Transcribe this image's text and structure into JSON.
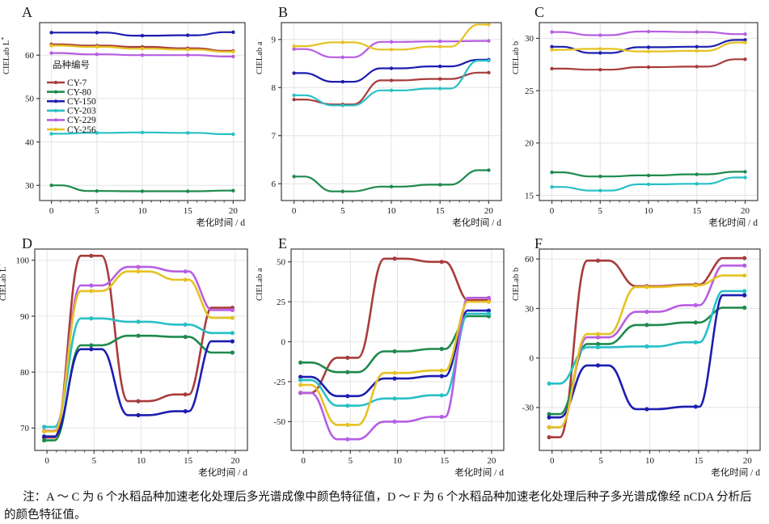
{
  "figure": {
    "legend_title": "品种编号",
    "series": [
      {
        "name": "CY-7",
        "color": "#A83C3C"
      },
      {
        "name": "CY-80",
        "color": "#1E8A4D"
      },
      {
        "name": "CY-150",
        "color": "#1D1DB0"
      },
      {
        "name": "CY-203",
        "color": "#27C0C6"
      },
      {
        "name": "CY-229",
        "color": "#B75EE3"
      },
      {
        "name": "CY-256",
        "color": "#E6C223"
      }
    ],
    "x": [
      0,
      5,
      10,
      15,
      20
    ],
    "xlabel": "老化时间 / d",
    "grid": "on",
    "colors": {
      "gridline": "#E4E4E4",
      "axis": "#3E3E3E",
      "text": "#1a1a1a"
    }
  },
  "chart_data": [
    {
      "type": "line",
      "panel": "A",
      "ylabel": "CIELab L*",
      "xlabel": "老化时间 / d",
      "yticks": [
        30,
        40,
        50,
        60
      ],
      "ylim": [
        26.5,
        67.5
      ],
      "xticks": [
        0,
        5,
        10,
        15,
        20
      ],
      "legend_position": "upper-left-inside",
      "has_legend": true,
      "series": [
        {
          "name": "CY-7",
          "values": [
            62.5,
            62.2,
            61.9,
            61.6,
            61.0
          ]
        },
        {
          "name": "CY-80",
          "values": [
            30.0,
            28.7,
            28.65,
            28.65,
            28.8
          ]
        },
        {
          "name": "CY-150",
          "values": [
            65.2,
            65.2,
            64.5,
            64.6,
            65.3
          ]
        },
        {
          "name": "CY-203",
          "values": [
            41.9,
            42.1,
            42.2,
            42.1,
            41.8
          ]
        },
        {
          "name": "CY-229",
          "values": [
            60.5,
            60.2,
            60.0,
            60.0,
            59.7
          ]
        },
        {
          "name": "CY-256",
          "values": [
            62.2,
            61.9,
            61.5,
            61.3,
            60.8
          ]
        }
      ]
    },
    {
      "type": "line",
      "panel": "B",
      "ylabel": "CIELab a*",
      "xlabel": "老化时间 / d",
      "yticks": [
        6,
        7,
        8,
        9
      ],
      "ylim": [
        5.65,
        9.35
      ],
      "xticks": [
        0,
        5,
        10,
        15,
        20
      ],
      "has_legend": false,
      "series": [
        {
          "name": "CY-7",
          "values": [
            7.75,
            7.65,
            8.15,
            8.18,
            8.31
          ]
        },
        {
          "name": "CY-80",
          "values": [
            6.15,
            5.84,
            5.94,
            5.98,
            6.28
          ]
        },
        {
          "name": "CY-150",
          "values": [
            8.3,
            8.12,
            8.4,
            8.44,
            8.58
          ]
        },
        {
          "name": "CY-203",
          "values": [
            7.84,
            7.63,
            7.94,
            7.98,
            8.56
          ]
        },
        {
          "name": "CY-229",
          "values": [
            8.8,
            8.63,
            8.95,
            8.96,
            8.97
          ]
        },
        {
          "name": "CY-256",
          "values": [
            8.86,
            8.94,
            8.79,
            8.85,
            9.31
          ]
        }
      ]
    },
    {
      "type": "line",
      "panel": "C",
      "ylabel": "CIELab b*",
      "xlabel": "老化时间 / d",
      "yticks": [
        15,
        20,
        25,
        30
      ],
      "ylim": [
        14.5,
        31.5
      ],
      "xticks": [
        0,
        5,
        10,
        15,
        20
      ],
      "has_legend": false,
      "series": [
        {
          "name": "CY-7",
          "values": [
            27.1,
            27.0,
            27.25,
            27.3,
            28.0
          ]
        },
        {
          "name": "CY-80",
          "values": [
            17.2,
            16.8,
            16.9,
            17.0,
            17.25
          ]
        },
        {
          "name": "CY-150",
          "values": [
            29.2,
            28.6,
            29.15,
            29.2,
            29.85
          ]
        },
        {
          "name": "CY-203",
          "values": [
            15.8,
            15.45,
            16.05,
            16.1,
            16.7
          ]
        },
        {
          "name": "CY-229",
          "values": [
            30.6,
            30.3,
            30.65,
            30.6,
            30.4
          ]
        },
        {
          "name": "CY-256",
          "values": [
            28.9,
            29.0,
            28.75,
            28.8,
            29.6
          ]
        }
      ]
    },
    {
      "type": "line",
      "panel": "D",
      "ylabel": "CIELab L*",
      "xlabel": "老化时间 / d",
      "yticks": [
        70,
        80,
        90,
        100
      ],
      "ylim": [
        66,
        102
      ],
      "xticks": [
        0,
        5,
        10,
        15,
        20
      ],
      "has_legend": false,
      "series": [
        {
          "name": "CY-7",
          "values": [
            68.3,
            100.8,
            74.8,
            76.0,
            91.5
          ]
        },
        {
          "name": "CY-80",
          "values": [
            67.8,
            84.8,
            86.5,
            86.3,
            83.5
          ]
        },
        {
          "name": "CY-150",
          "values": [
            68.5,
            84.1,
            72.3,
            73.0,
            85.5
          ]
        },
        {
          "name": "CY-203",
          "values": [
            70.2,
            89.6,
            89.0,
            88.5,
            87.0
          ]
        },
        {
          "name": "CY-229",
          "values": [
            69.5,
            95.5,
            98.8,
            98.0,
            91.1
          ]
        },
        {
          "name": "CY-256",
          "values": [
            69.4,
            94.5,
            98.0,
            96.5,
            89.7
          ]
        }
      ]
    },
    {
      "type": "line",
      "panel": "E",
      "ylabel": "CIELab a*",
      "xlabel": "老化时间 / d",
      "yticks": [
        -50,
        -25,
        0,
        25,
        50
      ],
      "ylim": [
        -68,
        58
      ],
      "xticks": [
        0,
        5,
        10,
        15,
        20
      ],
      "has_legend": false,
      "series": [
        {
          "name": "CY-7",
          "values": [
            -32,
            -10,
            52,
            50,
            26
          ]
        },
        {
          "name": "CY-80",
          "values": [
            -13,
            -19,
            -6,
            -4.5,
            16
          ]
        },
        {
          "name": "CY-150",
          "values": [
            -22,
            -34,
            -23,
            -21.5,
            19.5
          ]
        },
        {
          "name": "CY-203",
          "values": [
            -24,
            -40,
            -35.5,
            -33.5,
            17.5
          ]
        },
        {
          "name": "CY-229",
          "values": [
            -32,
            -61,
            -50,
            -47,
            27.5
          ]
        },
        {
          "name": "CY-256",
          "values": [
            -27,
            -52,
            -19.5,
            -18,
            25
          ]
        }
      ]
    },
    {
      "type": "line",
      "panel": "F",
      "ylabel": "CIELab b*",
      "xlabel": "老化时间 / d",
      "yticks": [
        -30,
        0,
        30,
        60
      ],
      "ylim": [
        -56,
        66
      ],
      "xticks": [
        0,
        5,
        10,
        15,
        20
      ],
      "has_legend": false,
      "series": [
        {
          "name": "CY-7",
          "values": [
            -48,
            59,
            43.5,
            44.5,
            60.5
          ]
        },
        {
          "name": "CY-80",
          "values": [
            -34,
            8.5,
            20,
            21.5,
            30.5
          ]
        },
        {
          "name": "CY-150",
          "values": [
            -36,
            -4.5,
            -31,
            -29.5,
            38
          ]
        },
        {
          "name": "CY-203",
          "values": [
            -15.5,
            6.5,
            7,
            9.5,
            40.5
          ]
        },
        {
          "name": "CY-229",
          "values": [
            -42,
            12.5,
            28,
            32,
            56
          ]
        },
        {
          "name": "CY-256",
          "values": [
            -42,
            14.5,
            43,
            44,
            50
          ]
        }
      ]
    }
  ],
  "note": {
    "text": "注：A ～ C 为 6 个水稻品种加速老化处理后多光谱成像中颜色特征值，D ～ F 为 6 个水稻品种加速老化处理后种子多光谱成像经 nCDA 分析后的颜色特征值。"
  }
}
